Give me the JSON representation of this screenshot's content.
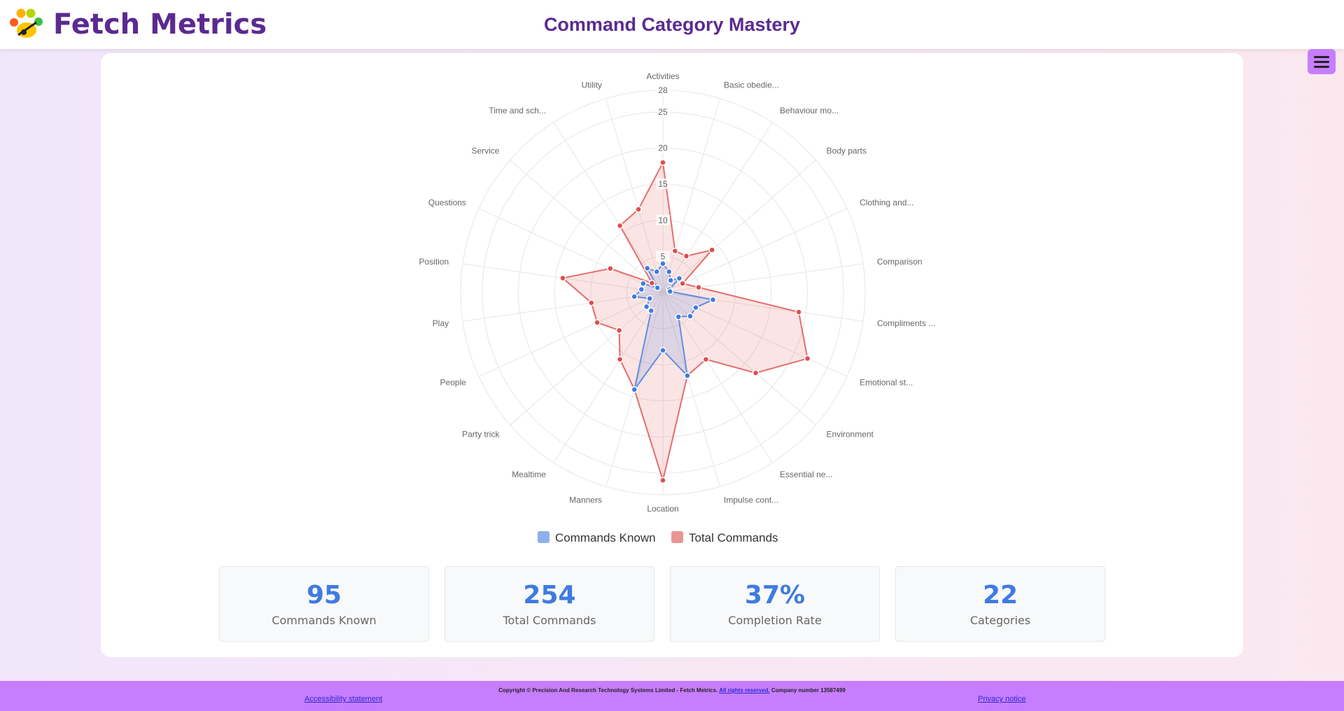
{
  "header": {
    "brand": "Fetch Metrics",
    "title": "Command Category Mastery"
  },
  "chart_data": {
    "type": "radar",
    "categories": [
      "Activities",
      "Basic obedie...",
      "Behaviour mo...",
      "Body parts",
      "Clothing and...",
      "Comparison",
      "Compliments ...",
      "Emotional st...",
      "Environment",
      "Essential ne...",
      "Impulse cont...",
      "Location",
      "Manners",
      "Mealtime",
      "Party trick",
      "People",
      "Play",
      "Position",
      "Questions",
      "Service",
      "Time and sch...",
      "Utility"
    ],
    "series": [
      {
        "name": "Commands Known",
        "color": "#3f7be0",
        "values": [
          4,
          3,
          2,
          3,
          1,
          1,
          7,
          5,
          5,
          4,
          12,
          8,
          14,
          3,
          3,
          2,
          4,
          3,
          3,
          1,
          4,
          3
        ]
      },
      {
        "name": "Total Commands",
        "color": "#e04c4c",
        "values": [
          18,
          6,
          6,
          9,
          3,
          5,
          19,
          22,
          17,
          11,
          12,
          26,
          14,
          11,
          8,
          10,
          10,
          14,
          8,
          2,
          11,
          12
        ]
      }
    ],
    "rlim": [
      0,
      28
    ],
    "rticks": [
      5,
      10,
      15,
      20,
      25,
      28
    ],
    "grid": true,
    "legend": "bottom"
  },
  "stats": [
    {
      "value": "95",
      "label": "Commands Known"
    },
    {
      "value": "254",
      "label": "Total Commands"
    },
    {
      "value": "37%",
      "label": "Completion Rate"
    },
    {
      "value": "22",
      "label": "Categories"
    }
  ],
  "footer": {
    "copyright": "Copyright © Precision And Research Technology Systems Limited - Fetch Metrics.",
    "rights": "All rights reserved.",
    "company": "Company number 13587499",
    "accessibility": "Accessibility statement",
    "privacy": "Privacy notice"
  }
}
